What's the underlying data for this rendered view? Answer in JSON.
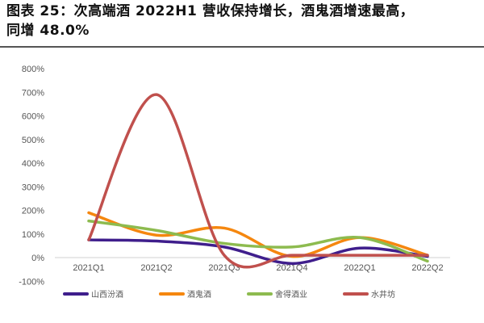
{
  "header": {
    "title_line1": "图表 25：次高端酒 2022H1 营收保持增长，酒鬼酒增速最高，",
    "title_line2": "同增 48.0%"
  },
  "chart_data": {
    "type": "line",
    "title": "图表 25：次高端酒 2022H1 营收保持增长，酒鬼酒增速最高，同增 48.0%",
    "xlabel": "",
    "ylabel": "",
    "categories": [
      "2021Q1",
      "2021Q2",
      "2021Q3",
      "2021Q4",
      "2022Q1",
      "2022Q2"
    ],
    "ylim": [
      -100,
      800
    ],
    "yticks": [
      "800%",
      "700%",
      "600%",
      "500%",
      "400%",
      "300%",
      "200%",
      "100%",
      "0%",
      "-100%"
    ],
    "grid": false,
    "smooth": true,
    "legend_position": "bottom",
    "series": [
      {
        "name": "山西汾酒",
        "color": "#3F1E8C",
        "values": [
          75,
          70,
          45,
          -25,
          40,
          5
        ]
      },
      {
        "name": "酒鬼酒",
        "color": "#F5870F",
        "values": [
          190,
          95,
          125,
          5,
          85,
          10
        ]
      },
      {
        "name": "舍得酒业",
        "color": "#8DBB4F",
        "values": [
          155,
          115,
          60,
          45,
          85,
          -15
        ]
      },
      {
        "name": "水井坊",
        "color": "#C0504D",
        "values": [
          75,
          690,
          10,
          10,
          10,
          10
        ]
      }
    ]
  }
}
